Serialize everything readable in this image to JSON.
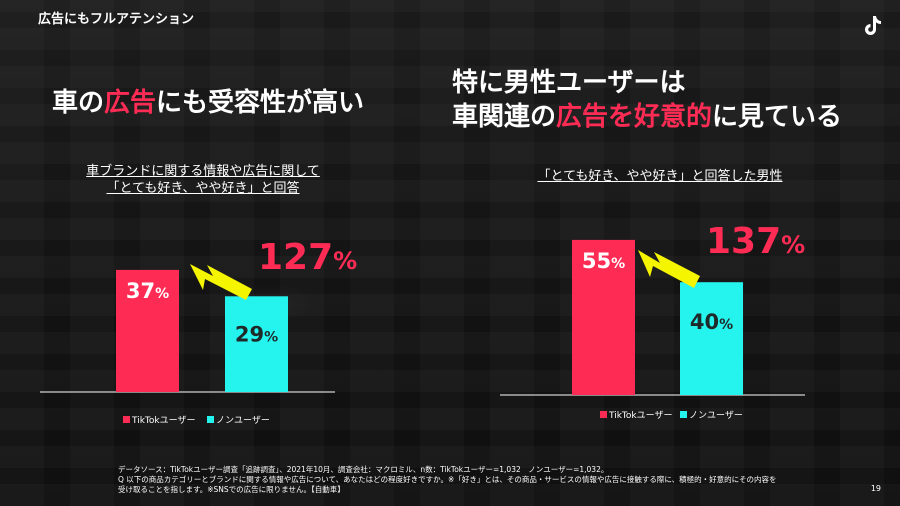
{
  "header": "広告にもフルアテンション",
  "logo_icon": "tiktok-icon",
  "left": {
    "title_parts": [
      "車の",
      "広告",
      "にも受容性が高い"
    ],
    "subtitle_lines": [
      "車ブランドに関する情報や広告に関して",
      "「とても好き、やや好き」と回答"
    ]
  },
  "right": {
    "title_line1": "特に男性ユーザーは",
    "title_line2_parts": [
      "車関連の",
      "広告を好意的",
      "に見ている"
    ],
    "subtitle": "「とても好き、やや好き」と回答した男性"
  },
  "footnote_lines": [
    "データソース：TikTokユーザー調査「追跡調査」、2021年10月、調査会社：マクロミル、n数：TikTokユーザー=1,032　ノンユーザー=1,032。",
    "Q 以下の商品カテゴリーとブランドに関する情報や広告について、あなたはどの程度好きですか。※「好き」とは、その商品・サービスの情報や広告に接触する際に、積極的・好意的にその内容を",
    "受け取ることを指します。※SNSでの広告に限りません。【自動車】"
  ],
  "page_number": "19",
  "colors": {
    "tiktok": "#fe2c55",
    "non": "#25f4ee",
    "arrow": "#f5f500"
  },
  "chart_data": [
    {
      "type": "bar",
      "title": "車ブランドに関する情報や広告に関して「とても好き、やや好き」と回答",
      "categories": [
        "TikTokユーザー",
        "ノンユーザー"
      ],
      "values": [
        37,
        29
      ],
      "value_labels": [
        "37",
        "29"
      ],
      "unit": "%",
      "ratio_label": "127",
      "ratio_unit": "%",
      "legend": [
        "TikTokユーザー",
        "ノンユーザー"
      ],
      "ylim": [
        0,
        60
      ]
    },
    {
      "type": "bar",
      "title": "「とても好き、やや好き」と回答した男性",
      "categories": [
        "TikTokユーザー",
        "ノンユーザー"
      ],
      "values": [
        55,
        40
      ],
      "value_labels": [
        "55",
        "40"
      ],
      "unit": "%",
      "ratio_label": "137",
      "ratio_unit": "%",
      "legend": [
        "TikTokユーザー",
        "ノンユーザー"
      ],
      "ylim": [
        0,
        60
      ]
    }
  ]
}
